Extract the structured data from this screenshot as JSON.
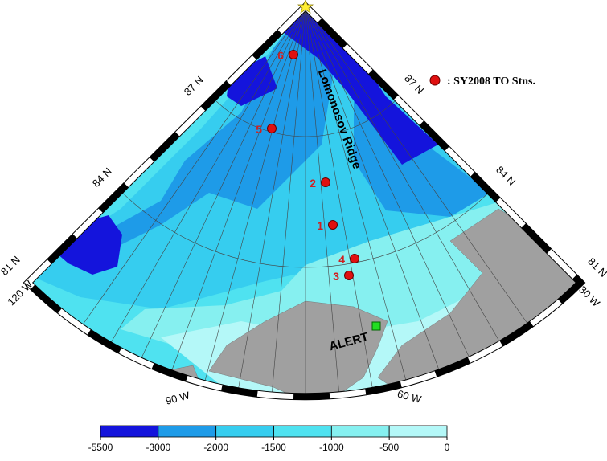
{
  "map": {
    "latitude_labels_left": [
      "81 N",
      "84 N",
      "87 N"
    ],
    "latitude_labels_right": [
      "81 N",
      "84 N",
      "87 N"
    ],
    "longitude_labels": [
      "120 W",
      "90 W",
      "60 W",
      "30 W"
    ],
    "ridge_label": "Lomonosov Ridge",
    "stations": [
      "1",
      "2",
      "3",
      "4",
      "5",
      "6"
    ],
    "base_label": "ALERT"
  },
  "legend": {
    "label": ": SY2008 TO Stns."
  },
  "colorbar": {
    "ticks": [
      -5500,
      -3000,
      -2000,
      -1500,
      -1000,
      -500,
      0
    ],
    "colors": [
      "#1414dc",
      "#1e9be8",
      "#36cdef",
      "#4fe2f0",
      "#86f0f0",
      "#b4f8f8"
    ]
  }
}
